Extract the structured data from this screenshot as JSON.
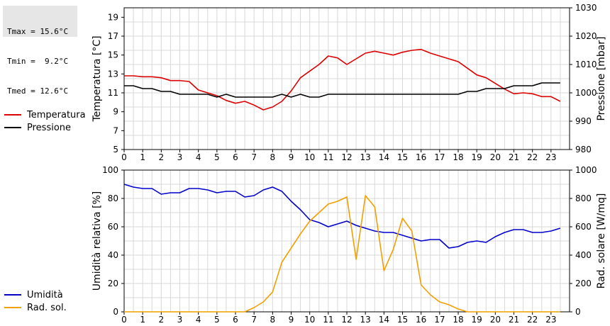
{
  "stats": {
    "tmax": "Tmax = 15.6°C",
    "tmin": "Tmin =  9.2°C",
    "tmed": "Tmed = 12.6°C"
  },
  "chart_data": [
    {
      "type": "line",
      "x": [
        0,
        0.5,
        1,
        1.5,
        2,
        2.5,
        3,
        3.5,
        4,
        4.5,
        5,
        5.5,
        6,
        6.5,
        7,
        7.5,
        8,
        8.5,
        9,
        9.5,
        10,
        10.5,
        11,
        11.5,
        12,
        12.5,
        13,
        13.5,
        14,
        14.5,
        15,
        15.5,
        16,
        16.5,
        17,
        17.5,
        18,
        18.5,
        19,
        19.5,
        20,
        20.5,
        21,
        21.5,
        22,
        22.5,
        23,
        23.5
      ],
      "xlim": [
        0,
        24
      ],
      "xticks": [
        "0",
        "1",
        "2",
        "3",
        "4",
        "5",
        "6",
        "7",
        "8",
        "9",
        "10",
        "11",
        "12",
        "13",
        "14",
        "15",
        "16",
        "17",
        "18",
        "19",
        "20",
        "21",
        "22",
        "23"
      ],
      "ylabel": "Temperatura [°C]",
      "ylim": [
        5,
        20
      ],
      "yticks": [
        "5",
        "7",
        "9",
        "11",
        "13",
        "15",
        "17",
        "19"
      ],
      "y2label": "Pressione [mbar]",
      "y2lim": [
        980,
        1030
      ],
      "y2ticks": [
        "980",
        "990",
        "1000",
        "1010",
        "1020",
        "1030"
      ],
      "grid": true,
      "legend_placement": "left",
      "series": [
        {
          "name": "Temperatura",
          "axis": "left",
          "color": "#dd0000",
          "values": [
            12.8,
            12.8,
            12.7,
            12.7,
            12.6,
            12.3,
            12.3,
            12.2,
            11.3,
            11.0,
            10.7,
            10.2,
            9.9,
            10.1,
            9.7,
            9.2,
            9.5,
            10.1,
            11.2,
            12.6,
            13.3,
            14.0,
            14.9,
            14.7,
            14.0,
            14.6,
            15.2,
            15.4,
            15.2,
            15.0,
            15.3,
            15.5,
            15.6,
            15.2,
            14.9,
            14.6,
            14.3,
            13.6,
            12.9,
            12.6,
            12.0,
            11.4,
            10.9,
            11.0,
            10.9,
            10.6,
            10.6,
            10.1
          ]
        },
        {
          "name": "Pressione",
          "axis": "right",
          "color": "#000000",
          "values": [
            1002.5,
            1002.5,
            1001.5,
            1001.5,
            1000.5,
            1000.5,
            999.5,
            999.5,
            999.5,
            999.5,
            998.5,
            999.5,
            998.5,
            998.5,
            998.5,
            998.5,
            998.5,
            999.5,
            998.5,
            999.5,
            998.5,
            998.5,
            999.5,
            999.5,
            999.5,
            999.5,
            999.5,
            999.5,
            999.5,
            999.5,
            999.5,
            999.5,
            999.5,
            999.5,
            999.5,
            999.5,
            999.5,
            1000.5,
            1000.5,
            1001.5,
            1001.5,
            1001.5,
            1002.5,
            1002.5,
            1002.5,
            1003.5,
            1003.5,
            1003.5
          ]
        }
      ]
    },
    {
      "type": "line",
      "x": [
        0,
        0.5,
        1,
        1.5,
        2,
        2.5,
        3,
        3.5,
        4,
        4.5,
        5,
        5.5,
        6,
        6.5,
        7,
        7.5,
        8,
        8.5,
        9,
        9.5,
        10,
        10.5,
        11,
        11.5,
        12,
        12.5,
        13,
        13.5,
        14,
        14.5,
        15,
        15.5,
        16,
        16.5,
        17,
        17.5,
        18,
        18.5,
        19,
        19.5,
        20,
        20.5,
        21,
        21.5,
        22,
        22.5,
        23,
        23.5
      ],
      "xlim": [
        0,
        24
      ],
      "xticks": [
        "0",
        "1",
        "2",
        "3",
        "4",
        "5",
        "6",
        "7",
        "8",
        "9",
        "10",
        "11",
        "12",
        "13",
        "14",
        "15",
        "16",
        "17",
        "18",
        "19",
        "20",
        "21",
        "22",
        "23"
      ],
      "ylabel": "Umidità relativa [%]",
      "ylim": [
        0,
        100
      ],
      "yticks": [
        "0",
        "20",
        "40",
        "60",
        "80",
        "100"
      ],
      "y2label": "Rad. solare [W/mq]",
      "y2lim": [
        0,
        1000
      ],
      "y2ticks": [
        "0",
        "200",
        "400",
        "600",
        "800",
        "1000"
      ],
      "grid": true,
      "legend_placement": "left",
      "series": [
        {
          "name": "Umidità",
          "axis": "left",
          "color": "#0000cc",
          "values": [
            90,
            88,
            87,
            87,
            83,
            84,
            84,
            87,
            87,
            86,
            84,
            85,
            85,
            81,
            82,
            86,
            88,
            85,
            78,
            72,
            65,
            63,
            60,
            62,
            64,
            61,
            59,
            57,
            56,
            56,
            54,
            52,
            50,
            51,
            51,
            45,
            46,
            49,
            50,
            49,
            53,
            56,
            58,
            58,
            56,
            56,
            57,
            59
          ]
        },
        {
          "name": "Rad. sol.",
          "axis": "right",
          "color": "#f0a000",
          "values": [
            0,
            0,
            0,
            0,
            0,
            0,
            0,
            0,
            0,
            0,
            0,
            0,
            0,
            0,
            30,
            70,
            140,
            350,
            450,
            550,
            640,
            700,
            760,
            780,
            810,
            370,
            820,
            740,
            290,
            440,
            660,
            570,
            190,
            120,
            70,
            50,
            20,
            0,
            0,
            0,
            0,
            0,
            0,
            0,
            0,
            0,
            0,
            0
          ]
        }
      ]
    }
  ]
}
